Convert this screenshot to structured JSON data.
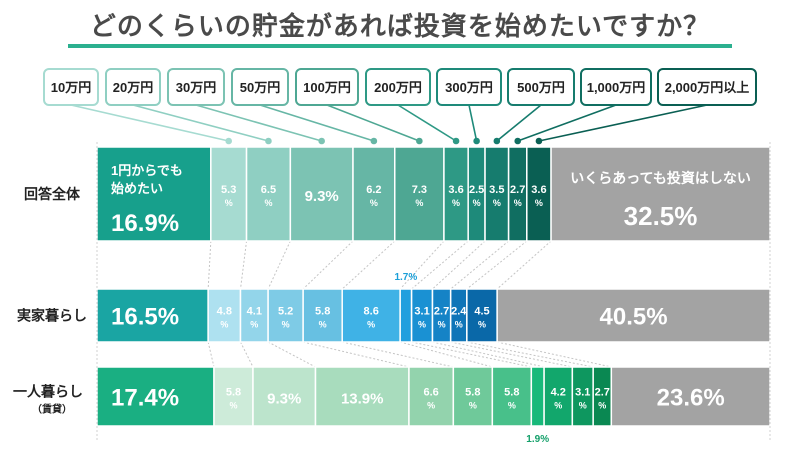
{
  "title": "どのくらいの貯金があれば投資を始めたいですか？",
  "colors": {
    "title_rule": "#2bb08f",
    "none": "#a3a3a3",
    "zero_total": "#17a08c",
    "zero_jikka": "#1aa5a3",
    "zero_hitori": "#1aaf82",
    "total": [
      "#a6dbd1",
      "#8fcfc2",
      "#7cc3b3",
      "#66b6a5",
      "#4ea793",
      "#2e9985",
      "#1e8a7a",
      "#167c6e",
      "#106e61",
      "#0a5f53"
    ],
    "jikka": [
      "#aee1f0",
      "#93d5ea",
      "#7ecbe6",
      "#67c0e2",
      "#3fb2e6",
      "#219fde",
      "#1a91d3",
      "#1583c6",
      "#0f75b8",
      "#0a68a8"
    ],
    "hitori": [
      "#cdebd9",
      "#bce4cc",
      "#a8dcbd",
      "#93d3ad",
      "#6fc99a",
      "#48c08a",
      "#18b97a",
      "#12a76c",
      "#0e975f",
      "#0a8852"
    ]
  },
  "chart_data": {
    "type": "bar",
    "stacked": true,
    "orientation": "horizontal",
    "title": "どのくらいの貯金があれば投資を始めたいですか？",
    "unit": "%",
    "categories": [
      "1円からでも始めたい",
      "10万円",
      "20万円",
      "30万円",
      "50万円",
      "100万円",
      "200万円",
      "300万円",
      "500万円",
      "1,000万円",
      "2,000万円以上",
      "いくらあっても投資はしない"
    ],
    "legend": [
      "10万円",
      "20万円",
      "30万円",
      "50万円",
      "100万円",
      "200万円",
      "300万円",
      "500万円",
      "1,000万円",
      "2,000万円以上"
    ],
    "series": [
      {
        "name": "回答全体",
        "values": [
          16.9,
          5.3,
          6.5,
          9.3,
          6.2,
          7.3,
          3.6,
          2.5,
          3.5,
          2.7,
          3.6,
          32.5
        ]
      },
      {
        "name": "実家暮らし",
        "values": [
          16.5,
          4.8,
          4.1,
          5.2,
          5.8,
          8.6,
          1.7,
          3.1,
          2.7,
          2.4,
          4.5,
          40.5
        ]
      },
      {
        "name": "一人暮らし（賃貸）",
        "values": [
          17.4,
          5.8,
          9.3,
          13.9,
          6.6,
          5.8,
          5.8,
          1.9,
          4.2,
          3.1,
          2.7,
          23.6
        ]
      }
    ],
    "row_labels": [
      [
        "回答全体"
      ],
      [
        "実家暮らし"
      ],
      [
        "一人暮らし",
        "（賃貸）"
      ]
    ],
    "first_label": [
      "1円からでも",
      "始めたい"
    ],
    "last_label": "いくらあっても投資はしない",
    "grid": false
  }
}
